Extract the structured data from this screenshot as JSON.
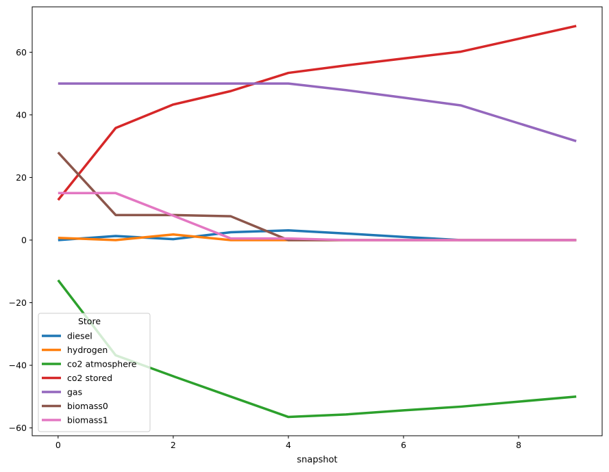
{
  "chart_data": {
    "type": "line",
    "xlabel": "snapshot",
    "ylabel": "",
    "xlim": [
      -0.45,
      9.45
    ],
    "ylim": [
      -62.5,
      74.5
    ],
    "xticks": [
      0,
      2,
      4,
      6,
      8
    ],
    "yticks": [
      -60,
      -40,
      -20,
      0,
      20,
      40,
      60
    ],
    "grid": false,
    "legend": {
      "title": "Store",
      "position": "lower-left"
    },
    "x": [
      0,
      1,
      2,
      3,
      4,
      5,
      6,
      7,
      8,
      9
    ],
    "series": [
      {
        "name": "diesel",
        "color": "#1f77b4",
        "values": [
          0,
          1.3,
          0.3,
          2.5,
          3.1,
          2.1,
          1.0,
          0,
          0,
          0
        ]
      },
      {
        "name": "hydrogen",
        "color": "#ff7f0e",
        "values": [
          0.7,
          0,
          1.8,
          0,
          0,
          0,
          0,
          0,
          0,
          0
        ]
      },
      {
        "name": "co2 atmosphere",
        "color": "#2ca02c",
        "values": [
          -12.8,
          -36.8,
          -43.5,
          -50.0,
          -56.5,
          -55.7,
          -54.4,
          -53.2,
          -51.6,
          -50.0
        ]
      },
      {
        "name": "co2 stored",
        "color": "#d62728",
        "values": [
          12.8,
          35.8,
          43.3,
          47.6,
          53.4,
          55.8,
          58.0,
          60.2,
          64.3,
          68.4
        ]
      },
      {
        "name": "gas",
        "color": "#9467bd",
        "values": [
          50.0,
          50.0,
          50.0,
          50.0,
          50.0,
          47.9,
          45.5,
          43.0,
          37.3,
          31.6
        ]
      },
      {
        "name": "biomass0",
        "color": "#8c564b",
        "values": [
          28.0,
          8.0,
          8.0,
          7.6,
          0,
          0,
          0,
          0,
          0,
          0
        ]
      },
      {
        "name": "biomass1",
        "color": "#e377c2",
        "values": [
          15.0,
          15.0,
          7.8,
          0.5,
          0.5,
          0,
          0,
          0,
          0,
          0
        ]
      }
    ]
  }
}
